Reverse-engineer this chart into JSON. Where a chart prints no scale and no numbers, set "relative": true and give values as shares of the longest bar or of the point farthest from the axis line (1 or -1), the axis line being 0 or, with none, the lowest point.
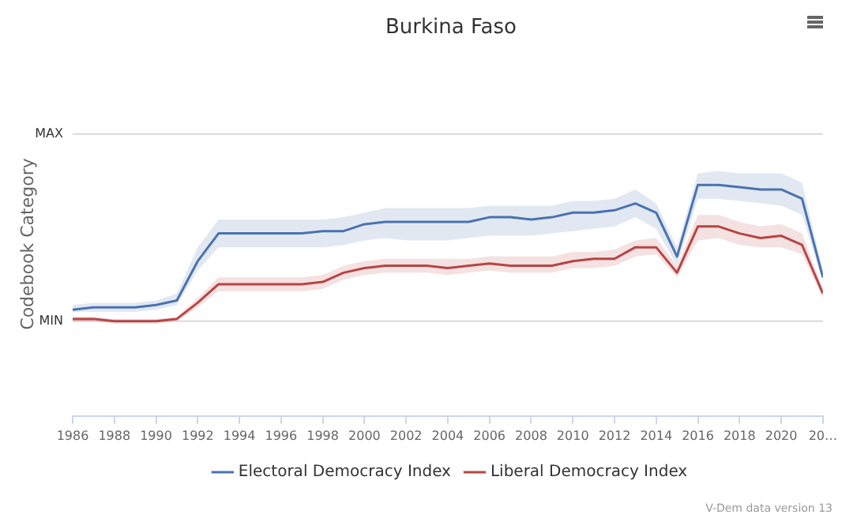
{
  "chart_data": {
    "type": "line",
    "title": "Burkina Faso",
    "ylabel": "Codebook Category",
    "relative": true,
    "x": [
      1986,
      1987,
      1988,
      1989,
      1990,
      1991,
      1992,
      1993,
      1994,
      1995,
      1996,
      1997,
      1998,
      1999,
      2000,
      2001,
      2002,
      2003,
      2004,
      2005,
      2006,
      2007,
      2008,
      2009,
      2010,
      2011,
      2012,
      2013,
      2014,
      2015,
      2016,
      2017,
      2018,
      2019,
      2020,
      2021,
      2022
    ],
    "series": [
      {
        "name": "Electoral Democracy Index",
        "color": "#4a72b0",
        "values": [
          0.46,
          0.47,
          0.47,
          0.47,
          0.48,
          0.5,
          0.67,
          0.79,
          0.79,
          0.79,
          0.79,
          0.79,
          0.8,
          0.8,
          0.83,
          0.84,
          0.84,
          0.84,
          0.84,
          0.84,
          0.86,
          0.86,
          0.85,
          0.86,
          0.88,
          0.88,
          0.89,
          0.92,
          0.88,
          0.69,
          1,
          1,
          0.99,
          0.98,
          0.98,
          0.94,
          0.6
        ],
        "lower": [
          0.45,
          0.45,
          0.45,
          0.45,
          0.46,
          0.48,
          0.63,
          0.73,
          0.73,
          0.73,
          0.73,
          0.73,
          0.73,
          0.74,
          0.76,
          0.77,
          0.76,
          0.76,
          0.76,
          0.77,
          0.78,
          0.78,
          0.78,
          0.79,
          0.8,
          0.81,
          0.82,
          0.86,
          0.81,
          0.65,
          0.94,
          0.94,
          0.93,
          0.92,
          0.91,
          0.87,
          0.58
        ],
        "upper": [
          0.48,
          0.49,
          0.49,
          0.49,
          0.5,
          0.53,
          0.73,
          0.85,
          0.85,
          0.85,
          0.85,
          0.85,
          0.85,
          0.86,
          0.88,
          0.9,
          0.9,
          0.9,
          0.9,
          0.9,
          0.91,
          0.91,
          0.91,
          0.91,
          0.93,
          0.93,
          0.94,
          0.98,
          0.92,
          0.73,
          1.05,
          1.06,
          1.05,
          1.05,
          1.05,
          1.01,
          0.63
        ]
      },
      {
        "name": "Liberal Democracy Index",
        "color": "#b84444",
        "values": [
          0.42,
          0.42,
          0.41,
          0.41,
          0.41,
          0.42,
          0.49,
          0.57,
          0.57,
          0.57,
          0.57,
          0.57,
          0.58,
          0.62,
          0.64,
          0.65,
          0.65,
          0.65,
          0.64,
          0.65,
          0.66,
          0.65,
          0.65,
          0.65,
          0.67,
          0.68,
          0.68,
          0.73,
          0.73,
          0.62,
          0.82,
          0.82,
          0.79,
          0.77,
          0.78,
          0.74,
          0.53
        ],
        "lower": [
          0.41,
          0.41,
          0.4,
          0.4,
          0.4,
          0.41,
          0.47,
          0.54,
          0.54,
          0.54,
          0.54,
          0.54,
          0.55,
          0.59,
          0.61,
          0.62,
          0.62,
          0.62,
          0.61,
          0.62,
          0.63,
          0.62,
          0.62,
          0.62,
          0.64,
          0.64,
          0.65,
          0.69,
          0.7,
          0.6,
          0.76,
          0.77,
          0.74,
          0.73,
          0.73,
          0.7,
          0.51
        ],
        "upper": [
          0.43,
          0.43,
          0.42,
          0.42,
          0.42,
          0.43,
          0.51,
          0.6,
          0.6,
          0.6,
          0.6,
          0.6,
          0.61,
          0.65,
          0.67,
          0.68,
          0.68,
          0.68,
          0.68,
          0.68,
          0.69,
          0.69,
          0.69,
          0.69,
          0.71,
          0.71,
          0.72,
          0.76,
          0.77,
          0.65,
          0.87,
          0.87,
          0.84,
          0.82,
          0.83,
          0.79,
          0.55
        ]
      }
    ],
    "xlim": [
      1986,
      2022
    ],
    "xticks": [
      1986,
      1988,
      1990,
      1992,
      1994,
      1996,
      1998,
      2000,
      2002,
      2004,
      2006,
      2008,
      2010,
      2012,
      2014,
      2016,
      2018,
      2020,
      {
        "value": 2022,
        "label": "20…"
      }
    ],
    "ref_lines": [
      {
        "axis": "y",
        "value": 1.22,
        "label": "MAX"
      },
      {
        "axis": "y",
        "value": 0.41,
        "label": "MIN"
      }
    ],
    "legend": "bottom",
    "marker": "none",
    "line_style": "solid",
    "annotations": [
      "V-Dem data version 13"
    ]
  }
}
